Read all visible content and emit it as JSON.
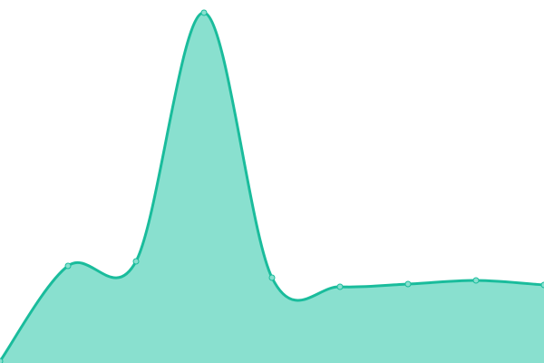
{
  "chart_data": {
    "type": "area",
    "x": [
      0,
      1,
      2,
      3,
      4,
      5,
      6,
      7,
      8
    ],
    "values": [
      2,
      107,
      112,
      386,
      94,
      84,
      87,
      91,
      86
    ],
    "ylim": [
      0,
      400
    ],
    "xlim": [
      0,
      8
    ],
    "grid": false,
    "axes_visible": false,
    "curve": "smooth",
    "colors": {
      "line": "#1abc9c",
      "fill": "#89e0cf",
      "point_fill": "#89e0cf"
    }
  }
}
